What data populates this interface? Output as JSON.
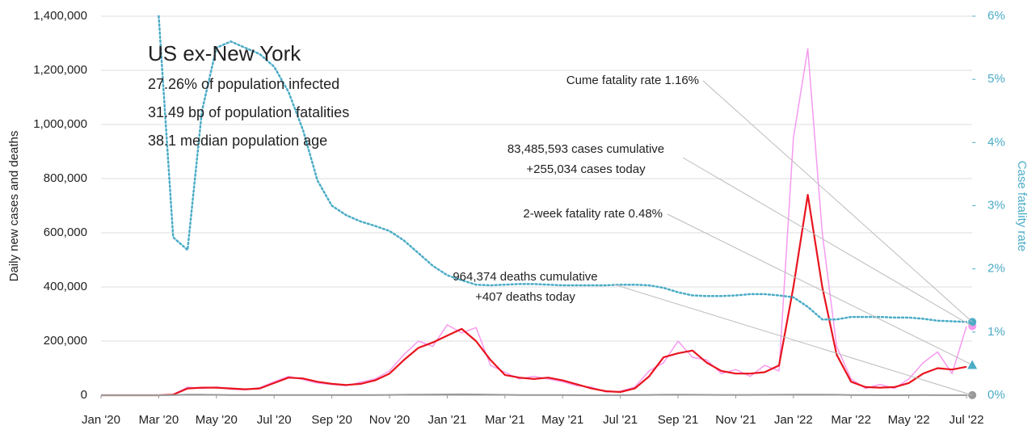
{
  "chart_data": {
    "type": "line",
    "info": {
      "title": "US ex-New York",
      "lines": [
        "27.26% of population infected",
        "31.49 bp of population fatalities",
        "38.1 median population age"
      ]
    },
    "ylabel": "Daily new cases and deaths",
    "y2label": "Case fatality rate",
    "x": [
      0,
      0.5,
      1,
      1.5,
      2,
      2.5,
      3,
      3.5,
      4,
      4.5,
      5,
      5.5,
      6,
      6.5,
      7,
      7.5,
      8,
      8.5,
      9,
      9.5,
      10,
      10.5,
      11,
      11.5,
      12,
      12.5,
      13,
      13.5,
      14,
      14.5,
      15,
      15.5,
      16,
      16.5,
      17,
      17.5,
      18,
      18.5,
      19,
      19.5,
      20,
      20.5,
      21,
      21.5,
      22,
      22.5,
      23,
      23.5,
      24,
      24.5,
      25,
      25.5,
      26,
      26.5,
      27,
      27.5,
      28,
      28.5,
      29,
      29.5,
      30
    ],
    "xlim": [
      0,
      30.2
    ],
    "xticks": [
      {
        "value": 0,
        "label": "Jan '20"
      },
      {
        "value": 2,
        "label": "Mar '20"
      },
      {
        "value": 4,
        "label": "May '20"
      },
      {
        "value": 6,
        "label": "Jul '20"
      },
      {
        "value": 8,
        "label": "Sep '20"
      },
      {
        "value": 10,
        "label": "Nov '20"
      },
      {
        "value": 12,
        "label": "Jan '21"
      },
      {
        "value": 14,
        "label": "Mar '21"
      },
      {
        "value": 16,
        "label": "May '21"
      },
      {
        "value": 18,
        "label": "Jul '21"
      },
      {
        "value": 20,
        "label": "Sep '21"
      },
      {
        "value": 22,
        "label": "Nov '21"
      },
      {
        "value": 24,
        "label": "Jan '22"
      },
      {
        "value": 26,
        "label": "Mar '22"
      },
      {
        "value": 28,
        "label": "May '22"
      },
      {
        "value": 30,
        "label": "Jul '22"
      }
    ],
    "ylim": [
      0,
      1400000
    ],
    "yticks": [
      0,
      {
        "value": 200000,
        "label": "200,000"
      },
      {
        "value": 400000,
        "label": "400,000"
      },
      {
        "value": 600000,
        "label": "600,000"
      },
      {
        "value": 800000,
        "label": "800,000"
      },
      {
        "value": 1000000,
        "label": "1,000,000"
      },
      {
        "value": 1200000,
        "label": "1,200,000"
      },
      {
        "value": 1400000,
        "label": "1,400,000"
      }
    ],
    "y2lim": [
      0,
      6
    ],
    "y2ticks": [
      {
        "value": 0,
        "label": "0%"
      },
      {
        "value": 1,
        "label": "1%"
      },
      {
        "value": 2,
        "label": "2%"
      },
      {
        "value": 3,
        "label": "3%"
      },
      {
        "value": 4,
        "label": "4%"
      },
      {
        "value": 5,
        "label": "5%"
      },
      {
        "value": 6,
        "label": "6%"
      }
    ],
    "series": [
      {
        "color": "#f59af0",
        "width": 1.5,
        "end_marker": "circle",
        "values": [
          0,
          0,
          0,
          0,
          0,
          3000,
          30000,
          25000,
          30000,
          22000,
          20000,
          28000,
          50000,
          70000,
          58000,
          45000,
          40000,
          35000,
          48000,
          60000,
          90000,
          150000,
          200000,
          180000,
          260000,
          230000,
          250000,
          110000,
          85000,
          60000,
          70000,
          60000,
          50000,
          35000,
          30000,
          12000,
          15000,
          30000,
          90000,
          120000,
          200000,
          140000,
          130000,
          80000,
          95000,
          70000,
          110000,
          90000,
          950000,
          1280000,
          600000,
          180000,
          60000,
          25000,
          40000,
          25000,
          60000,
          120000,
          160000,
          80000,
          255034
        ]
      },
      {
        "color": "#e8141e",
        "width": 2.2,
        "values": [
          0,
          0,
          0,
          0,
          0,
          2000,
          25000,
          28000,
          28000,
          25000,
          22000,
          25000,
          45000,
          65000,
          62000,
          50000,
          42000,
          38000,
          42000,
          55000,
          80000,
          130000,
          175000,
          195000,
          220000,
          245000,
          200000,
          130000,
          75000,
          65000,
          60000,
          65000,
          55000,
          40000,
          25000,
          15000,
          12000,
          25000,
          70000,
          140000,
          155000,
          165000,
          120000,
          90000,
          80000,
          80000,
          85000,
          110000,
          400000,
          740000,
          400000,
          150000,
          50000,
          30000,
          28000,
          30000,
          45000,
          80000,
          100000,
          95000,
          105000
        ]
      },
      {
        "color": "#999999",
        "width": 2,
        "end_marker": "circle",
        "values": [
          0,
          0,
          0,
          0,
          0,
          200,
          2000,
          2000,
          1500,
          1000,
          700,
          600,
          800,
          1000,
          1000,
          900,
          800,
          700,
          700,
          800,
          1100,
          1800,
          2500,
          2700,
          3000,
          3300,
          3000,
          2200,
          1500,
          900,
          700,
          600,
          500,
          400,
          300,
          250,
          300,
          500,
          1200,
          1900,
          2000,
          1800,
          1500,
          1200,
          1100,
          1200,
          1400,
          1700,
          2200,
          2500,
          2400,
          1800,
          900,
          500,
          350,
          350,
          400,
          450,
          400,
          380,
          407
        ]
      },
      {
        "color": "#4bacc6",
        "width": 2.5,
        "line_style": "dotted",
        "axis": "y2",
        "end_marker": "circle",
        "values": [
          null,
          null,
          null,
          null,
          6,
          2.5,
          2.3,
          4.5,
          5.5,
          5.6,
          5.5,
          5.4,
          5.2,
          4.8,
          4.2,
          3.4,
          3.0,
          2.85,
          2.75,
          2.68,
          2.6,
          2.45,
          2.25,
          2.05,
          1.9,
          1.82,
          1.75,
          1.74,
          1.75,
          1.76,
          1.76,
          1.75,
          1.74,
          1.74,
          1.74,
          1.74,
          1.75,
          1.75,
          1.74,
          1.7,
          1.63,
          1.58,
          1.57,
          1.57,
          1.58,
          1.6,
          1.6,
          1.58,
          1.55,
          1.4,
          1.2,
          1.2,
          1.24,
          1.24,
          1.24,
          1.23,
          1.23,
          1.21,
          1.18,
          1.17,
          1.16
        ]
      }
    ],
    "annotations": [
      {
        "text": [
          "Cume fatality rate 1.16%"
        ]
      },
      {
        "text": [
          "83,485,593 cases cumulative",
          "+255,034 cases today"
        ]
      },
      {
        "text": [
          "2-week fatality rate 0.48%"
        ],
        "value": 0.48,
        "axis": "y2",
        "marker": "triangle",
        "color": "#4bacc6"
      },
      {
        "text": [
          "964,374 deaths cumulative",
          "+407 deaths today"
        ]
      }
    ]
  }
}
